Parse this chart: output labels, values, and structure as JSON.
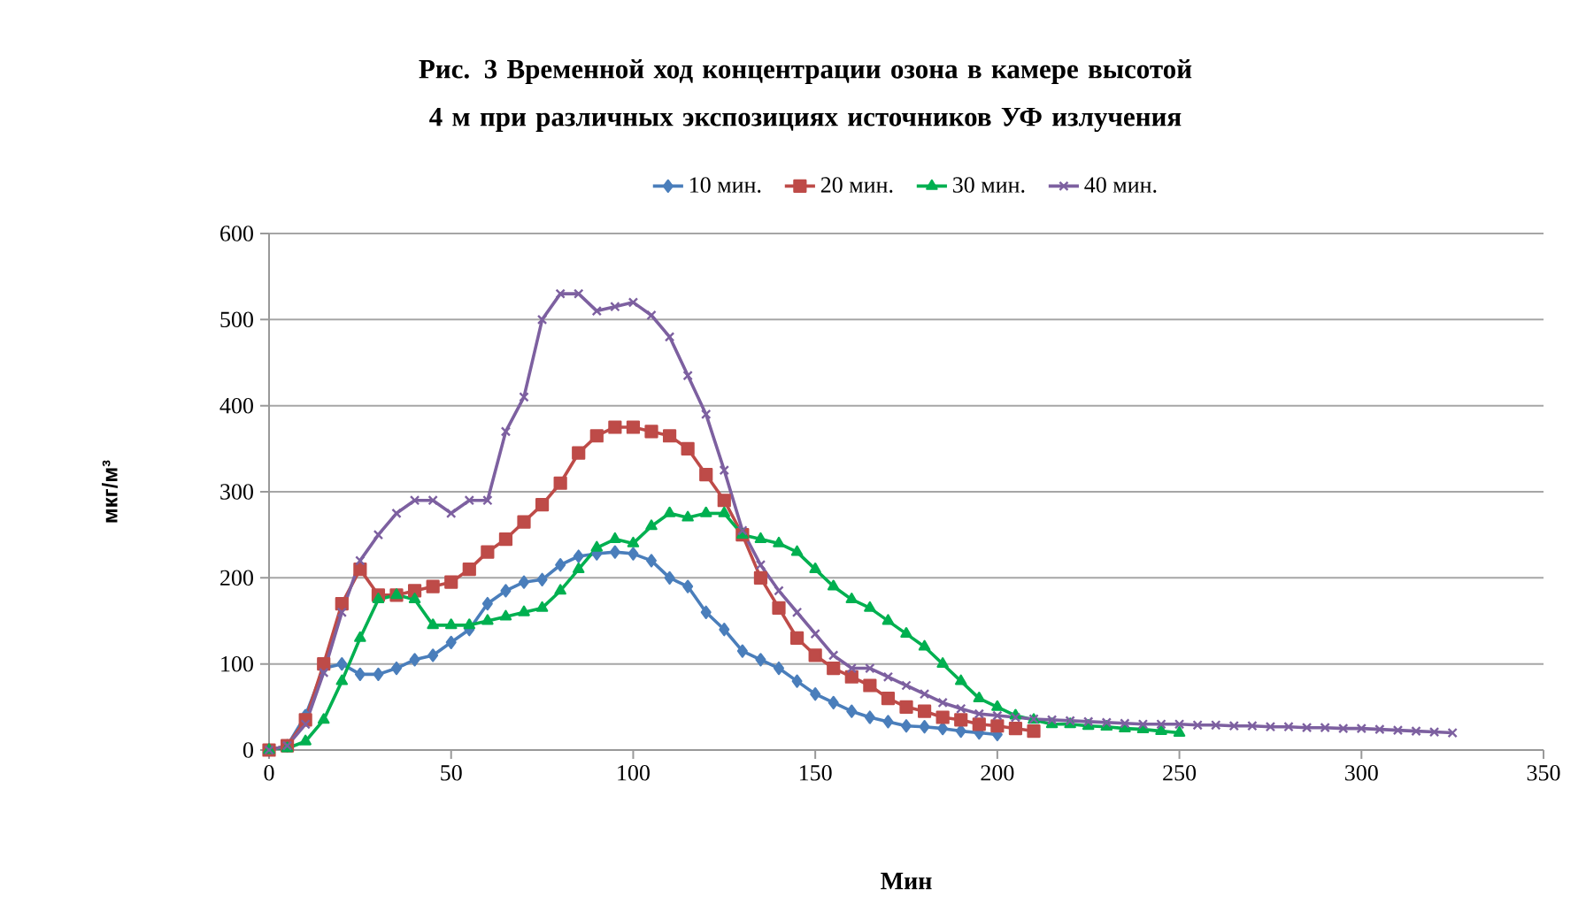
{
  "chart_data": {
    "type": "line",
    "title": "Рис. 3  Временной ход концентрации озона в камере высотой 4 м при различных экспозициях источников  УФ излучения",
    "xlabel": "Мин",
    "ylabel": "мкг/м³",
    "xlim": [
      0,
      350
    ],
    "xticks": [
      0,
      50,
      100,
      150,
      200,
      250,
      300,
      350
    ],
    "ylim": [
      0,
      600
    ],
    "yticks": [
      0,
      100,
      200,
      300,
      400,
      500,
      600
    ],
    "grid": "y",
    "legend": "top",
    "line_style": "solid",
    "series": [
      {
        "name": "10 мин.",
        "color": "#4a7ebb",
        "marker": "diamond",
        "x": [
          0,
          5,
          10,
          15,
          20,
          25,
          30,
          35,
          40,
          45,
          50,
          55,
          60,
          65,
          70,
          75,
          80,
          85,
          90,
          95,
          100,
          105,
          110,
          115,
          120,
          125,
          130,
          135,
          140,
          145,
          150,
          155,
          160,
          165,
          170,
          175,
          180,
          185,
          190,
          195,
          200
        ],
        "values": [
          0,
          5,
          40,
          95,
          100,
          88,
          88,
          95,
          105,
          110,
          125,
          140,
          170,
          185,
          195,
          198,
          215,
          225,
          228,
          230,
          228,
          220,
          200,
          190,
          160,
          140,
          115,
          105,
          95,
          80,
          65,
          55,
          45,
          38,
          33,
          28,
          27,
          25,
          22,
          20,
          18
        ]
      },
      {
        "name": "20 мин.",
        "color": "#be4b48",
        "marker": "square",
        "x": [
          0,
          5,
          10,
          15,
          20,
          25,
          30,
          35,
          40,
          45,
          50,
          55,
          60,
          65,
          70,
          75,
          80,
          85,
          90,
          95,
          100,
          105,
          110,
          115,
          120,
          125,
          130,
          135,
          140,
          145,
          150,
          155,
          160,
          165,
          170,
          175,
          180,
          185,
          190,
          195,
          200,
          205,
          210
        ],
        "values": [
          0,
          5,
          35,
          100,
          170,
          210,
          180,
          180,
          185,
          190,
          195,
          210,
          230,
          245,
          265,
          285,
          310,
          345,
          365,
          375,
          375,
          370,
          365,
          350,
          320,
          290,
          250,
          200,
          165,
          130,
          110,
          95,
          85,
          75,
          60,
          50,
          45,
          38,
          35,
          30,
          28,
          25,
          22
        ]
      },
      {
        "name": "30 мин.",
        "color": "#00b050",
        "marker": "triangle",
        "x": [
          0,
          5,
          10,
          15,
          20,
          25,
          30,
          35,
          40,
          45,
          50,
          55,
          60,
          65,
          70,
          75,
          80,
          85,
          90,
          95,
          100,
          105,
          110,
          115,
          120,
          125,
          130,
          135,
          140,
          145,
          150,
          155,
          160,
          165,
          170,
          175,
          180,
          185,
          190,
          195,
          200,
          205,
          210,
          215,
          220,
          225,
          230,
          235,
          240,
          245,
          250
        ],
        "values": [
          0,
          2,
          10,
          35,
          80,
          130,
          175,
          180,
          175,
          145,
          145,
          145,
          150,
          155,
          160,
          165,
          185,
          210,
          235,
          245,
          240,
          260,
          275,
          270,
          275,
          275,
          250,
          245,
          240,
          230,
          210,
          190,
          175,
          165,
          150,
          135,
          120,
          100,
          80,
          60,
          50,
          40,
          35,
          30,
          30,
          28,
          27,
          25,
          24,
          22,
          20
        ]
      },
      {
        "name": "40 мин.",
        "color": "#7d60a0",
        "marker": "cross",
        "x": [
          0,
          5,
          10,
          15,
          20,
          25,
          30,
          35,
          40,
          45,
          50,
          55,
          60,
          65,
          70,
          75,
          80,
          85,
          90,
          95,
          100,
          105,
          110,
          115,
          120,
          125,
          130,
          135,
          140,
          145,
          150,
          155,
          160,
          165,
          170,
          175,
          180,
          185,
          190,
          195,
          200,
          205,
          210,
          215,
          220,
          225,
          230,
          235,
          240,
          245,
          250,
          255,
          260,
          265,
          270,
          275,
          280,
          285,
          290,
          295,
          300,
          305,
          310,
          315,
          320,
          325
        ],
        "values": [
          0,
          5,
          30,
          90,
          160,
          220,
          250,
          275,
          290,
          290,
          275,
          290,
          290,
          370,
          410,
          500,
          530,
          530,
          510,
          515,
          520,
          505,
          480,
          435,
          390,
          325,
          255,
          215,
          185,
          160,
          135,
          110,
          95,
          95,
          85,
          75,
          65,
          55,
          48,
          42,
          40,
          38,
          36,
          35,
          34,
          33,
          32,
          31,
          30,
          30,
          30,
          29,
          29,
          28,
          28,
          27,
          27,
          26,
          26,
          25,
          25,
          24,
          23,
          22,
          21,
          20
        ]
      }
    ]
  }
}
